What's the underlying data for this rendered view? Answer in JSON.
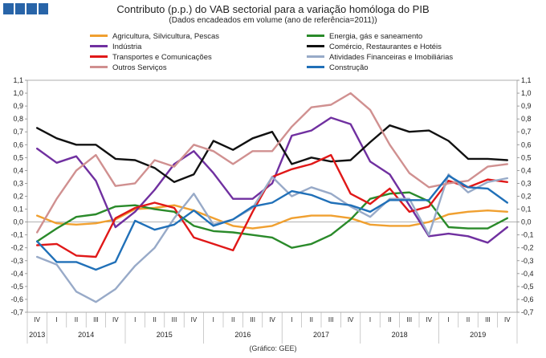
{
  "header": {
    "title": "Contributo (p.p.) do VAB sectorial para a variação homóloga do PIB",
    "subtitle": "(Dados encadeados em volume (ano de referência=2011))",
    "source": "(Gráfico: GEE)"
  },
  "chart_data": {
    "type": "line",
    "ylim": [
      -0.7,
      1.1
    ],
    "yticks": [
      "1,1",
      "1,0",
      "0,9",
      "0,8",
      "0,7",
      "0,6",
      "0,5",
      "0,4",
      "0,3",
      "0,2",
      "0,1",
      "0,0",
      "-0,1",
      "-0,2",
      "-0,3",
      "-0,4",
      "-0,5",
      "-0,6",
      "-0,7"
    ],
    "quarters": [
      "IV",
      "I",
      "II",
      "III",
      "IV",
      "I",
      "II",
      "III",
      "IV",
      "I",
      "II",
      "III",
      "IV",
      "I",
      "II",
      "III",
      "IV",
      "I",
      "II",
      "III",
      "IV",
      "I",
      "II",
      "III",
      "IV"
    ],
    "years": [
      {
        "label": "2013",
        "start": 0,
        "end": 0
      },
      {
        "label": "2014",
        "start": 1,
        "end": 4
      },
      {
        "label": "2015",
        "start": 5,
        "end": 8
      },
      {
        "label": "2016",
        "start": 9,
        "end": 12
      },
      {
        "label": "2017",
        "start": 13,
        "end": 16
      },
      {
        "label": "2018",
        "start": 17,
        "end": 20
      },
      {
        "label": "2019",
        "start": 21,
        "end": 24
      }
    ],
    "series": [
      {
        "name": "Agricultura, Silvicultura, Pescas",
        "color": "#f0a030",
        "values": [
          0.05,
          -0.01,
          -0.02,
          -0.01,
          0.02,
          0.1,
          0.11,
          0.13,
          0.09,
          0.03,
          -0.03,
          -0.05,
          -0.03,
          0.03,
          0.05,
          0.05,
          0.03,
          -0.02,
          -0.03,
          -0.03,
          0.0,
          0.06,
          0.08,
          0.09,
          0.08
        ]
      },
      {
        "name": "Energia, gás e saneamento",
        "color": "#2a8a2a",
        "values": [
          -0.15,
          -0.05,
          0.04,
          0.06,
          0.12,
          0.13,
          0.1,
          0.08,
          -0.03,
          -0.07,
          -0.08,
          -0.1,
          -0.12,
          -0.2,
          -0.17,
          -0.1,
          0.02,
          0.18,
          0.22,
          0.23,
          0.16,
          -0.04,
          -0.05,
          -0.05,
          0.03
        ]
      },
      {
        "name": "Indústria",
        "color": "#7030a0",
        "values": [
          0.57,
          0.46,
          0.51,
          0.32,
          -0.04,
          0.08,
          0.25,
          0.45,
          0.55,
          0.38,
          0.18,
          0.18,
          0.3,
          0.67,
          0.71,
          0.81,
          0.76,
          0.47,
          0.37,
          0.13,
          -0.11,
          -0.09,
          -0.11,
          -0.16,
          -0.04
        ]
      },
      {
        "name": "Comércio, Restaurantes e Hotéis",
        "color": "#111111",
        "values": [
          0.73,
          0.65,
          0.6,
          0.6,
          0.49,
          0.48,
          0.42,
          0.31,
          0.37,
          0.63,
          0.56,
          0.65,
          0.7,
          0.45,
          0.5,
          0.47,
          0.48,
          0.62,
          0.75,
          0.7,
          0.71,
          0.63,
          0.49,
          0.49,
          0.48
        ]
      },
      {
        "name": "Transportes e Comunicações",
        "color": "#e01818",
        "values": [
          -0.18,
          -0.17,
          -0.26,
          -0.27,
          0.03,
          0.11,
          0.15,
          0.11,
          -0.12,
          -0.17,
          -0.22,
          0.08,
          0.35,
          0.41,
          0.45,
          0.52,
          0.22,
          0.14,
          0.26,
          0.08,
          0.12,
          0.32,
          0.27,
          0.33,
          0.31
        ]
      },
      {
        "name": "Atividades Financeiras e Imobiliárias",
        "color": "#98aac8",
        "values": [
          -0.27,
          -0.33,
          -0.54,
          -0.62,
          -0.52,
          -0.34,
          -0.2,
          0.03,
          0.22,
          -0.02,
          0.02,
          0.11,
          0.35,
          0.2,
          0.27,
          0.22,
          0.12,
          0.04,
          0.18,
          0.18,
          -0.1,
          0.37,
          0.23,
          0.31,
          0.34
        ]
      },
      {
        "name": "Outros Serviços",
        "color": "#d09090",
        "values": [
          -0.08,
          0.18,
          0.4,
          0.52,
          0.28,
          0.3,
          0.48,
          0.43,
          0.6,
          0.55,
          0.45,
          0.55,
          0.55,
          0.74,
          0.89,
          0.91,
          1.0,
          0.87,
          0.6,
          0.38,
          0.27,
          0.3,
          0.32,
          0.43,
          0.45
        ]
      },
      {
        "name": "Construção",
        "color": "#2070b8",
        "values": [
          -0.15,
          -0.31,
          -0.31,
          -0.37,
          -0.31,
          0.01,
          -0.06,
          -0.02,
          0.09,
          -0.03,
          0.02,
          0.12,
          0.15,
          0.24,
          0.21,
          0.15,
          0.13,
          0.08,
          0.17,
          0.17,
          0.17,
          0.36,
          0.27,
          0.26,
          0.15
        ]
      }
    ]
  }
}
